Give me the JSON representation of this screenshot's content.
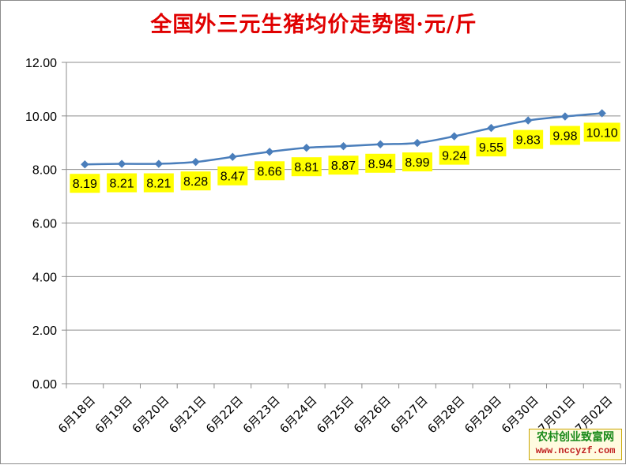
{
  "title": "全国外三元生猪均价走势图·元/斤",
  "watermark": {
    "name": "农村创业致富网",
    "url": "www.nccyzf.com"
  },
  "colors": {
    "title": "#e00000",
    "line": "#4a7ebb",
    "label_bg": "#ffff00",
    "grid": "#8c8c8c"
  },
  "chart_data": {
    "type": "line",
    "title": "全国外三元生猪均价走势图·元/斤",
    "xlabel": "",
    "ylabel": "",
    "ylim": [
      0,
      12
    ],
    "y_ticks": [
      "0.00",
      "2.00",
      "4.00",
      "6.00",
      "8.00",
      "10.00",
      "12.00"
    ],
    "grid": "horizontal",
    "legend": "none",
    "categories": [
      "6月18日",
      "6月19日",
      "6月20日",
      "6月21日",
      "6月22日",
      "6月23日",
      "6月24日",
      "6月25日",
      "6月26日",
      "6月27日",
      "6月28日",
      "6月29日",
      "6月30日",
      "7月01日",
      "7月02日"
    ],
    "series": [
      {
        "values": [
          8.19,
          8.21,
          8.21,
          8.28,
          8.47,
          8.66,
          8.81,
          8.87,
          8.94,
          8.99,
          9.24,
          9.55,
          9.83,
          9.98,
          10.1
        ],
        "labels": [
          "8.19",
          "8.21",
          "8.21",
          "8.28",
          "8.47",
          "8.66",
          "8.81",
          "8.87",
          "8.94",
          "8.99",
          "9.24",
          "9.55",
          "9.83",
          "9.98",
          "10.10"
        ]
      }
    ]
  }
}
